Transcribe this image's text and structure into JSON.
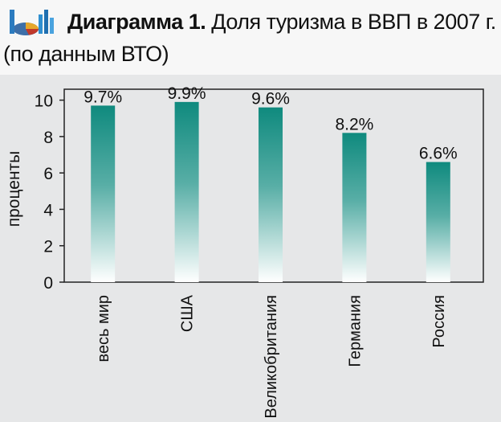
{
  "title": {
    "bold": "Диаграмма 1.",
    "rest": "Доля туризма в ВВП в 2007 г.",
    "line2": "(по данным ВТО)"
  },
  "colors": {
    "background": "#e6e7e8",
    "header_background": "#f7f7f7",
    "bar_top": "#0f8a7e",
    "bar_bottom": "#ffffff"
  },
  "chart_data": {
    "type": "bar",
    "categories": [
      "весь мир",
      "США",
      "Великобритания",
      "Германия",
      "Россия"
    ],
    "values": [
      9.7,
      9.9,
      9.6,
      8.2,
      6.6
    ],
    "value_labels": [
      "9.7%",
      "9.9%",
      "9.6%",
      "8.2%",
      "6.6%"
    ],
    "ylabel": "проценты",
    "ylim": [
      0,
      10.6
    ],
    "yticks": [
      "0",
      "2",
      "4",
      "6",
      "8",
      "10"
    ],
    "grid": false
  }
}
